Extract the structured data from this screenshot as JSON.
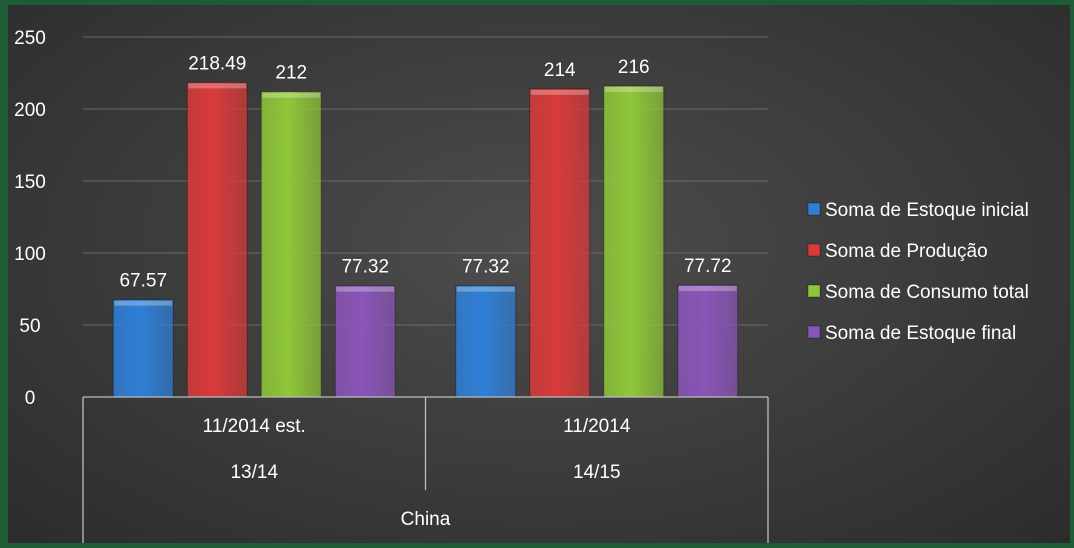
{
  "chart_data": {
    "type": "bar",
    "title": "",
    "xlabel": "",
    "ylabel": "",
    "ylim": [
      0,
      250
    ],
    "yticks": [
      0,
      50,
      100,
      150,
      200,
      250
    ],
    "grid": true,
    "legend_position": "right",
    "categories": [
      {
        "sublabel": "11/2014 est.",
        "label": "13/14"
      },
      {
        "sublabel": "11/2014",
        "label": "14/15"
      }
    ],
    "group_label": "China",
    "series": [
      {
        "name": "Soma de Estoque inicial",
        "color": "#2f7fd6",
        "values": [
          67.57,
          77.32
        ],
        "labels": [
          "67.57",
          "77.32"
        ]
      },
      {
        "name": "Soma de Produção",
        "color": "#d93a3a",
        "values": [
          218.49,
          214
        ],
        "labels": [
          "218.49",
          "214"
        ]
      },
      {
        "name": "Soma de Consumo total",
        "color": "#8fc63a",
        "values": [
          212,
          216
        ],
        "labels": [
          "212",
          "216"
        ]
      },
      {
        "name": "Soma de Estoque final",
        "color": "#8a55b8",
        "values": [
          77.32,
          77.72
        ],
        "labels": [
          "77.32",
          "77.72"
        ]
      }
    ]
  }
}
